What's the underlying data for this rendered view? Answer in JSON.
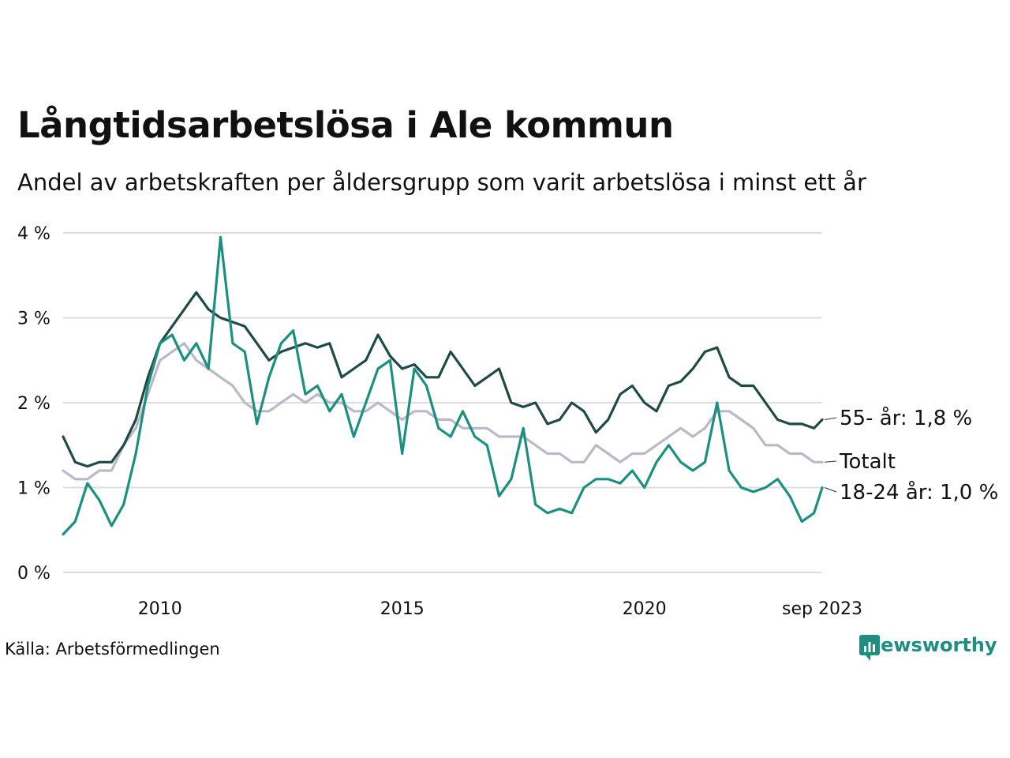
{
  "chart_data": {
    "type": "line",
    "title": "Långtidsarbetslösa i Ale kommun",
    "subtitle": "Andel av arbetskraften per åldersgrupp som varit arbetslösa i minst ett år",
    "xlabel": "",
    "ylabel": "",
    "xlim": [
      2008.0,
      2023.67
    ],
    "ylim": [
      0,
      4
    ],
    "y_ticks": [
      0,
      1,
      2,
      3,
      4
    ],
    "y_tick_labels": [
      "0 %",
      "1 %",
      "2 %",
      "3 %",
      "4 %"
    ],
    "x_ticks": [
      2010,
      2015,
      2020,
      2023.67
    ],
    "x_tick_labels": [
      "2010",
      "2015",
      "2020",
      "sep 2023"
    ],
    "grid": true,
    "legend": "direct labels at line ends (right)",
    "series": [
      {
        "name": "Totalt",
        "label": "Totalt",
        "color": "#bdb8c8",
        "x": [
          2008.0,
          2008.25,
          2008.5,
          2008.75,
          2009.0,
          2009.25,
          2009.5,
          2009.75,
          2010.0,
          2010.25,
          2010.5,
          2010.75,
          2011.0,
          2011.25,
          2011.5,
          2011.75,
          2012.0,
          2012.25,
          2012.5,
          2012.75,
          2013.0,
          2013.25,
          2013.5,
          2013.75,
          2014.0,
          2014.25,
          2014.5,
          2014.75,
          2015.0,
          2015.25,
          2015.5,
          2015.75,
          2016.0,
          2016.25,
          2016.5,
          2016.75,
          2017.0,
          2017.25,
          2017.5,
          2017.75,
          2018.0,
          2018.25,
          2018.5,
          2018.75,
          2019.0,
          2019.25,
          2019.5,
          2019.75,
          2020.0,
          2020.25,
          2020.5,
          2020.75,
          2021.0,
          2021.25,
          2021.5,
          2021.75,
          2022.0,
          2022.25,
          2022.5,
          2022.75,
          2023.0,
          2023.25,
          2023.5,
          2023.67
        ],
        "values": [
          1.2,
          1.1,
          1.1,
          1.2,
          1.2,
          1.5,
          1.7,
          2.1,
          2.5,
          2.6,
          2.7,
          2.5,
          2.4,
          2.3,
          2.2,
          2.0,
          1.9,
          1.9,
          2.0,
          2.1,
          2.0,
          2.1,
          2.0,
          2.0,
          1.9,
          1.9,
          2.0,
          1.9,
          1.8,
          1.9,
          1.9,
          1.8,
          1.8,
          1.7,
          1.7,
          1.7,
          1.6,
          1.6,
          1.6,
          1.5,
          1.4,
          1.4,
          1.3,
          1.3,
          1.5,
          1.4,
          1.3,
          1.4,
          1.4,
          1.5,
          1.6,
          1.7,
          1.6,
          1.7,
          1.9,
          1.9,
          1.8,
          1.7,
          1.5,
          1.5,
          1.4,
          1.4,
          1.3,
          1.3
        ]
      },
      {
        "name": "55- år",
        "label": "55- år: 1,8 %",
        "color": "#1f4a45",
        "x": [
          2008.0,
          2008.25,
          2008.5,
          2008.75,
          2009.0,
          2009.25,
          2009.5,
          2009.75,
          2010.0,
          2010.25,
          2010.5,
          2010.75,
          2011.0,
          2011.25,
          2011.5,
          2011.75,
          2012.0,
          2012.25,
          2012.5,
          2012.75,
          2013.0,
          2013.25,
          2013.5,
          2013.75,
          2014.0,
          2014.25,
          2014.5,
          2014.75,
          2015.0,
          2015.25,
          2015.5,
          2015.75,
          2016.0,
          2016.25,
          2016.5,
          2016.75,
          2017.0,
          2017.25,
          2017.5,
          2017.75,
          2018.0,
          2018.25,
          2018.5,
          2018.75,
          2019.0,
          2019.25,
          2019.5,
          2019.75,
          2020.0,
          2020.25,
          2020.5,
          2020.75,
          2021.0,
          2021.25,
          2021.5,
          2021.75,
          2022.0,
          2022.25,
          2022.5,
          2022.75,
          2023.0,
          2023.25,
          2023.5,
          2023.67
        ],
        "values": [
          1.6,
          1.3,
          1.25,
          1.3,
          1.3,
          1.5,
          1.8,
          2.3,
          2.7,
          2.9,
          3.1,
          3.3,
          3.1,
          3.0,
          2.95,
          2.9,
          2.7,
          2.5,
          2.6,
          2.65,
          2.7,
          2.65,
          2.7,
          2.3,
          2.4,
          2.5,
          2.8,
          2.55,
          2.4,
          2.45,
          2.3,
          2.3,
          2.6,
          2.4,
          2.2,
          2.3,
          2.4,
          2.0,
          1.95,
          2.0,
          1.75,
          1.8,
          2.0,
          1.9,
          1.65,
          1.8,
          2.1,
          2.2,
          2.0,
          1.9,
          2.2,
          2.25,
          2.4,
          2.6,
          2.65,
          2.3,
          2.2,
          2.2,
          2.0,
          1.8,
          1.75,
          1.75,
          1.7,
          1.8
        ]
      },
      {
        "name": "18-24 år",
        "label": "18-24 år: 1,0 %",
        "color": "#1a9080",
        "x": [
          2008.0,
          2008.25,
          2008.5,
          2008.75,
          2009.0,
          2009.25,
          2009.5,
          2009.75,
          2010.0,
          2010.25,
          2010.5,
          2010.75,
          2011.0,
          2011.25,
          2011.5,
          2011.75,
          2012.0,
          2012.25,
          2012.5,
          2012.75,
          2013.0,
          2013.25,
          2013.5,
          2013.75,
          2014.0,
          2014.25,
          2014.5,
          2014.75,
          2015.0,
          2015.25,
          2015.5,
          2015.75,
          2016.0,
          2016.25,
          2016.5,
          2016.75,
          2017.0,
          2017.25,
          2017.5,
          2017.75,
          2018.0,
          2018.25,
          2018.5,
          2018.75,
          2019.0,
          2019.25,
          2019.5,
          2019.75,
          2020.0,
          2020.25,
          2020.5,
          2020.75,
          2021.0,
          2021.25,
          2021.5,
          2021.75,
          2022.0,
          2022.25,
          2022.5,
          2022.75,
          2023.0,
          2023.25,
          2023.5,
          2023.67
        ],
        "values": [
          0.45,
          0.6,
          1.05,
          0.85,
          0.55,
          0.8,
          1.4,
          2.2,
          2.7,
          2.8,
          2.5,
          2.7,
          2.4,
          3.95,
          2.7,
          2.6,
          1.75,
          2.3,
          2.7,
          2.85,
          2.1,
          2.2,
          1.9,
          2.1,
          1.6,
          2.0,
          2.4,
          2.5,
          1.4,
          2.4,
          2.2,
          1.7,
          1.6,
          1.9,
          1.6,
          1.5,
          0.9,
          1.1,
          1.7,
          0.8,
          0.7,
          0.75,
          0.7,
          1.0,
          1.1,
          1.1,
          1.05,
          1.2,
          1.0,
          1.3,
          1.5,
          1.3,
          1.2,
          1.3,
          2.0,
          1.2,
          1.0,
          0.95,
          1.0,
          1.1,
          0.9,
          0.6,
          0.7,
          1.0
        ]
      }
    ]
  },
  "source": "Källa: Arbetsförmedlingen",
  "brand": "Newsworthy",
  "colors": {
    "grid": "#dddddd",
    "axis_text": "#111111",
    "brand": "#1e8e80"
  }
}
